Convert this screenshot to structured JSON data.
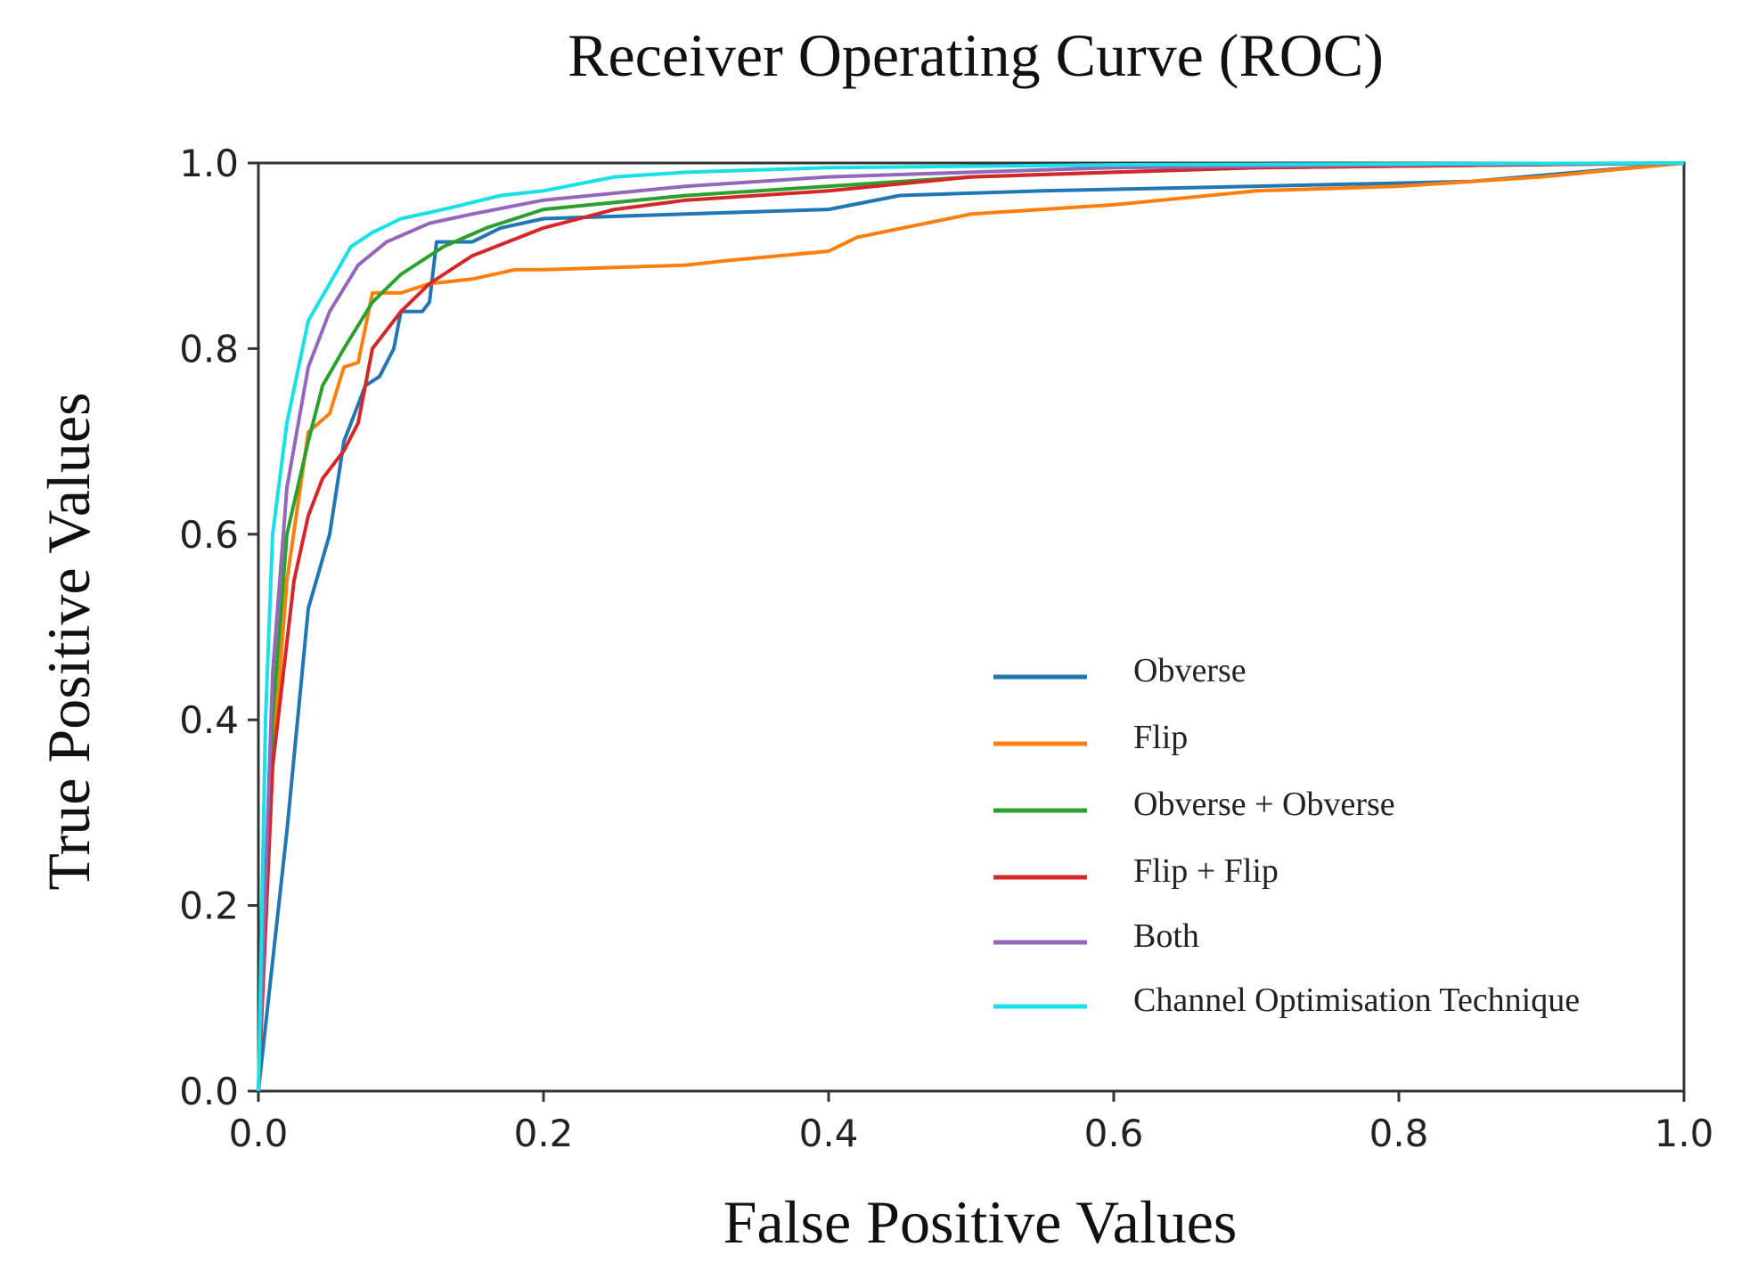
{
  "chart_data": {
    "type": "line",
    "title": "Receiver Operating Curve (ROC)",
    "xlabel": "False Positive Values",
    "ylabel": "True Positive Values",
    "xlim": [
      0.0,
      1.0
    ],
    "ylim": [
      0.0,
      1.0
    ],
    "x_ticks": [
      "0.0",
      "0.2",
      "0.4",
      "0.6",
      "0.8",
      "1.0"
    ],
    "y_ticks": [
      "0.0",
      "0.2",
      "0.4",
      "0.6",
      "0.8",
      "1.0"
    ],
    "grid": false,
    "legend_position": "lower-right",
    "series": [
      {
        "name": "Obverse",
        "color": "#1f77b4",
        "points": [
          [
            0.0,
            0.0
          ],
          [
            0.02,
            0.28
          ],
          [
            0.035,
            0.52
          ],
          [
            0.05,
            0.6
          ],
          [
            0.06,
            0.7
          ],
          [
            0.075,
            0.76
          ],
          [
            0.085,
            0.77
          ],
          [
            0.095,
            0.8
          ],
          [
            0.1,
            0.84
          ],
          [
            0.115,
            0.84
          ],
          [
            0.12,
            0.85
          ],
          [
            0.125,
            0.915
          ],
          [
            0.15,
            0.915
          ],
          [
            0.17,
            0.93
          ],
          [
            0.2,
            0.94
          ],
          [
            0.3,
            0.945
          ],
          [
            0.4,
            0.95
          ],
          [
            0.45,
            0.965
          ],
          [
            0.55,
            0.97
          ],
          [
            0.7,
            0.975
          ],
          [
            0.85,
            0.98
          ],
          [
            1.0,
            1.0
          ]
        ]
      },
      {
        "name": "Flip",
        "color": "#ff7f0e",
        "points": [
          [
            0.0,
            0.0
          ],
          [
            0.01,
            0.35
          ],
          [
            0.02,
            0.55
          ],
          [
            0.035,
            0.71
          ],
          [
            0.05,
            0.73
          ],
          [
            0.06,
            0.78
          ],
          [
            0.07,
            0.785
          ],
          [
            0.08,
            0.86
          ],
          [
            0.1,
            0.86
          ],
          [
            0.12,
            0.87
          ],
          [
            0.15,
            0.875
          ],
          [
            0.18,
            0.885
          ],
          [
            0.2,
            0.885
          ],
          [
            0.3,
            0.89
          ],
          [
            0.33,
            0.895
          ],
          [
            0.4,
            0.905
          ],
          [
            0.42,
            0.92
          ],
          [
            0.5,
            0.945
          ],
          [
            0.6,
            0.955
          ],
          [
            0.7,
            0.97
          ],
          [
            0.8,
            0.975
          ],
          [
            0.9,
            0.985
          ],
          [
            1.0,
            1.0
          ]
        ]
      },
      {
        "name": "Obverse + Obverse",
        "color": "#2ca02c",
        "points": [
          [
            0.0,
            0.0
          ],
          [
            0.01,
            0.4
          ],
          [
            0.02,
            0.6
          ],
          [
            0.035,
            0.7
          ],
          [
            0.045,
            0.76
          ],
          [
            0.06,
            0.8
          ],
          [
            0.08,
            0.85
          ],
          [
            0.1,
            0.88
          ],
          [
            0.13,
            0.91
          ],
          [
            0.16,
            0.93
          ],
          [
            0.2,
            0.95
          ],
          [
            0.3,
            0.965
          ],
          [
            0.4,
            0.975
          ],
          [
            0.5,
            0.985
          ],
          [
            0.6,
            0.99
          ],
          [
            0.7,
            0.995
          ],
          [
            1.0,
            1.0
          ]
        ]
      },
      {
        "name": "Flip + Flip",
        "color": "#d62728",
        "points": [
          [
            0.0,
            0.0
          ],
          [
            0.01,
            0.35
          ],
          [
            0.025,
            0.55
          ],
          [
            0.035,
            0.62
          ],
          [
            0.045,
            0.66
          ],
          [
            0.06,
            0.69
          ],
          [
            0.07,
            0.72
          ],
          [
            0.08,
            0.8
          ],
          [
            0.1,
            0.84
          ],
          [
            0.12,
            0.87
          ],
          [
            0.15,
            0.9
          ],
          [
            0.2,
            0.93
          ],
          [
            0.25,
            0.95
          ],
          [
            0.3,
            0.96
          ],
          [
            0.4,
            0.97
          ],
          [
            0.5,
            0.985
          ],
          [
            0.6,
            0.99
          ],
          [
            0.7,
            0.995
          ],
          [
            1.0,
            1.0
          ]
        ]
      },
      {
        "name": "Both",
        "color": "#9467bd",
        "points": [
          [
            0.0,
            0.0
          ],
          [
            0.01,
            0.45
          ],
          [
            0.02,
            0.65
          ],
          [
            0.035,
            0.78
          ],
          [
            0.05,
            0.84
          ],
          [
            0.07,
            0.89
          ],
          [
            0.09,
            0.915
          ],
          [
            0.12,
            0.935
          ],
          [
            0.15,
            0.945
          ],
          [
            0.2,
            0.96
          ],
          [
            0.3,
            0.975
          ],
          [
            0.4,
            0.985
          ],
          [
            0.5,
            0.99
          ],
          [
            0.6,
            0.995
          ],
          [
            0.8,
            0.998
          ],
          [
            1.0,
            1.0
          ]
        ]
      },
      {
        "name": "Channel Optimisation Technique",
        "color": "#17e0e6",
        "points": [
          [
            0.0,
            0.0
          ],
          [
            0.005,
            0.4
          ],
          [
            0.01,
            0.6
          ],
          [
            0.02,
            0.72
          ],
          [
            0.035,
            0.83
          ],
          [
            0.05,
            0.87
          ],
          [
            0.065,
            0.91
          ],
          [
            0.08,
            0.925
          ],
          [
            0.1,
            0.94
          ],
          [
            0.13,
            0.95
          ],
          [
            0.17,
            0.965
          ],
          [
            0.2,
            0.97
          ],
          [
            0.25,
            0.985
          ],
          [
            0.3,
            0.99
          ],
          [
            0.4,
            0.995
          ],
          [
            0.6,
            0.998
          ],
          [
            1.0,
            1.0
          ]
        ]
      }
    ]
  }
}
